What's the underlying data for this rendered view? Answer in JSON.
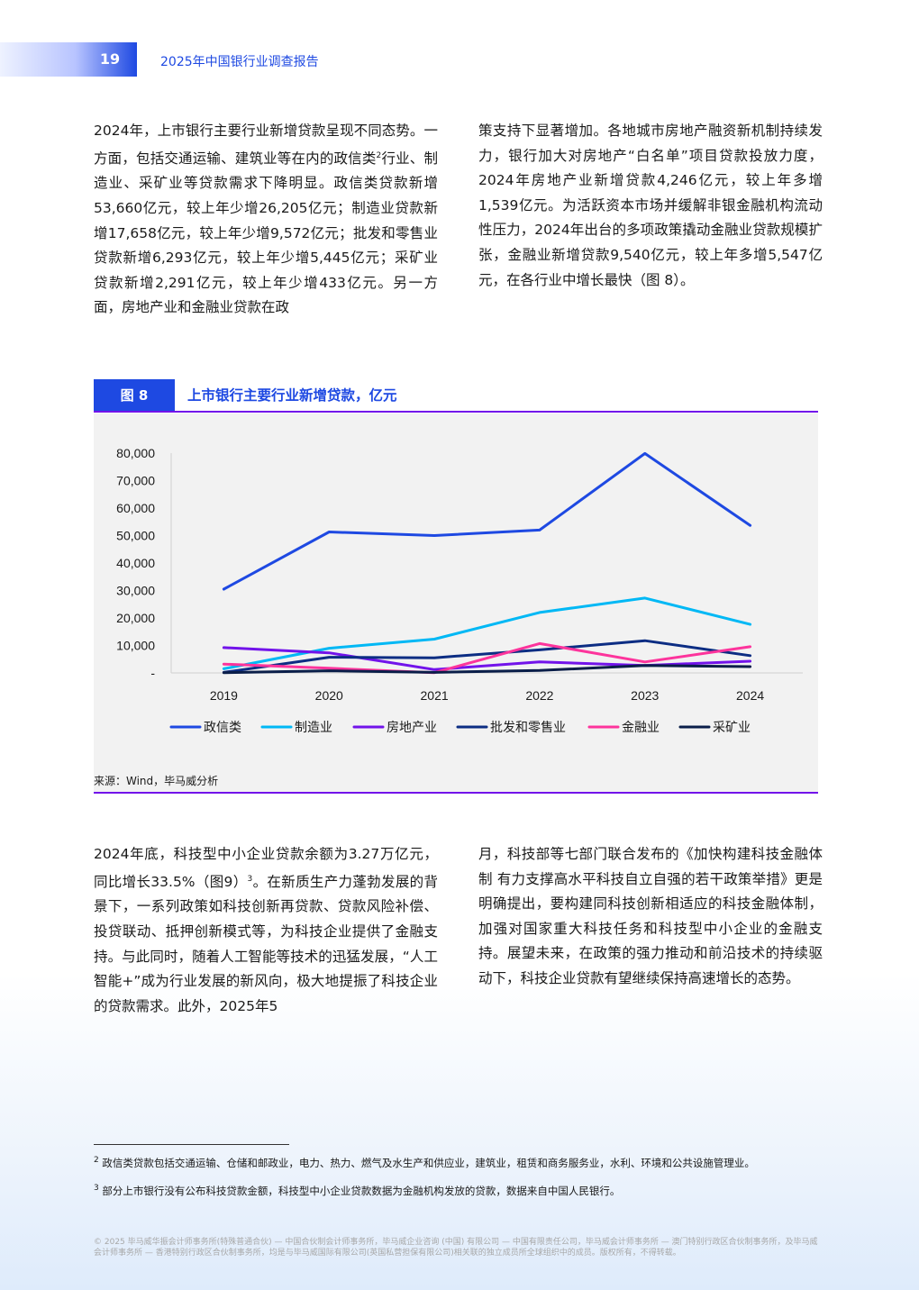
{
  "header": {
    "page_number": "19",
    "report_title": "2025年中国银行业调查报告"
  },
  "paragraphs": {
    "p1_a": "2024年，上市银行主要行业新增贷款呈现不同态势。一方面，包括交通运输、建筑业等在内的政信类",
    "p1_sup": "2",
    "p1_b": "行业、制造业、采矿业等贷款需求下降明显。政信类贷款新增53,660亿元，较上年少增26,205亿元；制造业贷款新增17,658亿元，较上年少增9,572亿元；批发和零售业贷款新增6,293亿元，较上年少增5,445亿元；采矿业贷款新增2,291亿元，较上年少增433亿元。另一方面，房地产业和金融业贷款在政",
    "p2": "策支持下显著增加。各地城市房地产融资新机制持续发力，银行加大对房地产“白名单”项目贷款投放力度，2024年房地产业新增贷款4,246亿元，较上年多增1,539亿元。为活跃资本市场并缓解非银金融机构流动性压力，2024年出台的多项政策撬动金融业贷款规模扩张，金融业新增贷款9,540亿元，较上年多增5,547亿元，在各行业中增长最快（图 8）。",
    "p3_a": "2024年底，科技型中小企业贷款余额为3.27万亿元，同比增长33.5%（图9）",
    "p3_sup": "3",
    "p3_b": "。在新质生产力蓬勃发展的背景下，一系列政策如科技创新再贷款、贷款风险补偿、投贷联动、抵押创新模式等，为科技企业提供了金融支持。与此同时，随着人工智能等技术的迅猛发展，“人工智能+”成为行业发展的新风向，极大地提振了科技企业的贷款需求。此外，2025年5",
    "p4": "月，科技部等七部门联合发布的《加快构建科技金融体制 有力支撑高水平科技自立自强的若干政策举措》更是明确提出，要构建同科技创新相适应的科技金融体制，加强对国家重大科技任务和科技型中小企业的金融支持。展望未来，在政策的强力推动和前沿技术的持续驱动下，科技企业贷款有望继续保持高速增长的态势。"
  },
  "figure": {
    "label": "图 8",
    "title": "上市银行主要行业新增贷款，亿元",
    "source": "来源：Wind，毕马威分析"
  },
  "chart_data": {
    "type": "line",
    "title": "上市银行主要行业新增贷款，亿元",
    "x": [
      "2019",
      "2020",
      "2021",
      "2022",
      "2023",
      "2024"
    ],
    "ylim": [
      0,
      80000
    ],
    "yticks": [
      "-",
      "10,000",
      "20,000",
      "30,000",
      "40,000",
      "50,000",
      "60,000",
      "70,000",
      "80,000"
    ],
    "grid": false,
    "legend_position": "bottom",
    "series": [
      {
        "name": "政信类",
        "color": "#1e49e2",
        "values": [
          30500,
          51300,
          50000,
          52000,
          79865,
          53660
        ]
      },
      {
        "name": "制造业",
        "color": "#00b8f5",
        "values": [
          1500,
          9000,
          12300,
          22000,
          27230,
          17658
        ]
      },
      {
        "name": "房地产业",
        "color": "#7213ea",
        "values": [
          9200,
          7300,
          1200,
          4000,
          2707,
          4246
        ]
      },
      {
        "name": "批发和零售业",
        "color": "#0c2d83",
        "values": [
          200,
          5700,
          5500,
          8400,
          11738,
          6293
        ]
      },
      {
        "name": "金融业",
        "color": "#fd349c",
        "values": [
          3200,
          1700,
          100,
          10700,
          3993,
          9540
        ]
      },
      {
        "name": "采矿业",
        "color": "#0a1e49",
        "values": [
          100,
          800,
          200,
          900,
          2724,
          2291
        ]
      }
    ]
  },
  "footnotes": {
    "fn2_mark": "2",
    "fn2": " 政信类贷款包括交通运输、仓储和邮政业，电力、热力、燃气及水生产和供应业，建筑业，租赁和商务服务业，水利、环境和公共设施管理业。",
    "fn3_mark": "3",
    "fn3": " 部分上市银行没有公布科技贷款金额，科技型中小企业贷款数据为金融机构发放的贷款，数据来自中国人民银行。"
  },
  "copyright": "© 2025 毕马威华振会计师事务所(特殊普通合伙) — 中国合伙制会计师事务所，毕马威企业咨询 (中国) 有限公司 — 中国有限责任公司，毕马威会计师事务所 — 澳门特别行政区合伙制事务所，及毕马威会计师事务所 — 香港特别行政区合伙制事务所，均是与毕马威国际有限公司(英国私营担保有限公司)相关联的独立成员所全球组织中的成员。版权所有，不得转载。"
}
